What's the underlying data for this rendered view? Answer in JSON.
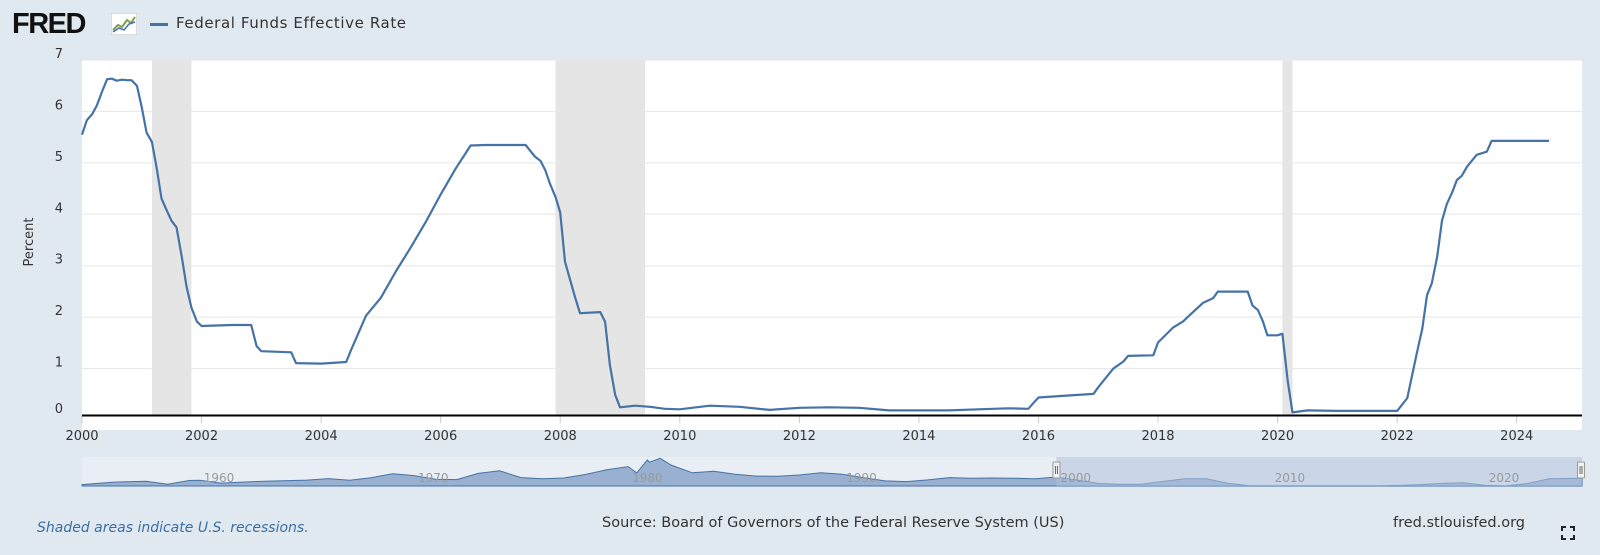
{
  "header": {
    "logo_text": "FRED",
    "logo_icon": "fred-chart-icon",
    "legend_label": "Federal Funds Effective Rate"
  },
  "colors": {
    "series": "#4572a7",
    "recession": "#e5e5e5",
    "background": "#e1e9f0",
    "plot": "#ffffff",
    "navigator_fill": "#7f9bc6",
    "navigator_selected": "#b1c3df"
  },
  "footer": {
    "recession_note": "Shaded areas indicate U.S. recessions.",
    "source": "Source: Board of Governors of the Federal Reserve System (US)",
    "site": "fred.stlouisfed.org",
    "fullscreen_icon": "fullscreen-icon"
  },
  "chart_data": {
    "type": "line",
    "title": "",
    "xlabel": "",
    "ylabel": "Percent",
    "xlim": [
      2000.0,
      2024.54
    ],
    "ylim": [
      0,
      7
    ],
    "y_ticks": [
      0,
      1,
      2,
      3,
      4,
      5,
      6,
      7
    ],
    "x_ticks": [
      2000,
      2002,
      2004,
      2006,
      2008,
      2010,
      2012,
      2014,
      2016,
      2018,
      2020,
      2022,
      2024
    ],
    "grid": true,
    "legend_position": "top-left",
    "recessions": [
      [
        2001.17,
        2001.83
      ],
      [
        2007.92,
        2009.42
      ],
      [
        2020.08,
        2020.25
      ]
    ],
    "series": [
      {
        "name": "Federal Funds Effective Rate",
        "x": [
          2000.0,
          2000.08,
          2000.17,
          2000.25,
          2000.33,
          2000.42,
          2000.5,
          2000.58,
          2000.67,
          2000.75,
          2000.83,
          2000.92,
          2001.0,
          2001.08,
          2001.17,
          2001.25,
          2001.33,
          2001.42,
          2001.5,
          2001.58,
          2001.67,
          2001.75,
          2001.83,
          2001.92,
          2002.0,
          2002.5,
          2002.83,
          2002.92,
          2003.0,
          2003.5,
          2003.58,
          2004.0,
          2004.42,
          2004.5,
          2004.75,
          2005.0,
          2005.25,
          2005.5,
          2005.75,
          2006.0,
          2006.25,
          2006.5,
          2006.75,
          2007.0,
          2007.42,
          2007.58,
          2007.67,
          2007.75,
          2007.83,
          2007.92,
          2008.0,
          2008.08,
          2008.17,
          2008.25,
          2008.33,
          2008.67,
          2008.75,
          2008.83,
          2008.92,
          2009.0,
          2009.25,
          2009.5,
          2009.75,
          2010.0,
          2010.5,
          2011.0,
          2011.5,
          2012.0,
          2012.5,
          2013.0,
          2013.5,
          2014.0,
          2014.5,
          2015.0,
          2015.5,
          2015.83,
          2015.92,
          2016.0,
          2016.5,
          2016.92,
          2017.0,
          2017.25,
          2017.42,
          2017.5,
          2017.92,
          2018.0,
          2018.25,
          2018.42,
          2018.5,
          2018.75,
          2018.92,
          2019.0,
          2019.5,
          2019.58,
          2019.67,
          2019.75,
          2019.83,
          2019.92,
          2020.0,
          2020.08,
          2020.17,
          2020.25,
          2020.5,
          2021.0,
          2021.5,
          2022.0,
          2022.17,
          2022.25,
          2022.33,
          2022.42,
          2022.5,
          2022.58,
          2022.67,
          2022.75,
          2022.83,
          2022.92,
          2023.0,
          2023.08,
          2023.17,
          2023.33,
          2023.5,
          2023.58,
          2023.75,
          2024.0,
          2024.25,
          2024.54
        ],
        "y": [
          5.45,
          5.73,
          5.85,
          6.02,
          6.27,
          6.53,
          6.54,
          6.5,
          6.52,
          6.51,
          6.51,
          6.4,
          5.98,
          5.49,
          5.31,
          4.8,
          4.21,
          3.97,
          3.77,
          3.65,
          3.07,
          2.49,
          2.09,
          1.82,
          1.73,
          1.75,
          1.75,
          1.34,
          1.24,
          1.22,
          1.01,
          1.0,
          1.03,
          1.26,
          1.93,
          2.28,
          2.79,
          3.26,
          3.75,
          4.29,
          4.79,
          5.24,
          5.25,
          5.25,
          5.25,
          5.02,
          4.94,
          4.76,
          4.49,
          4.24,
          3.94,
          2.98,
          2.61,
          2.28,
          1.98,
          2.0,
          1.81,
          0.97,
          0.39,
          0.15,
          0.18,
          0.16,
          0.12,
          0.11,
          0.18,
          0.16,
          0.1,
          0.14,
          0.15,
          0.14,
          0.09,
          0.09,
          0.09,
          0.11,
          0.13,
          0.12,
          0.24,
          0.34,
          0.38,
          0.41,
          0.54,
          0.9,
          1.04,
          1.15,
          1.16,
          1.41,
          1.7,
          1.82,
          1.91,
          2.18,
          2.27,
          2.4,
          2.4,
          2.13,
          2.04,
          1.83,
          1.55,
          1.55,
          1.55,
          1.58,
          0.65,
          0.05,
          0.09,
          0.08,
          0.08,
          0.08,
          0.33,
          0.77,
          1.21,
          1.68,
          2.33,
          2.56,
          3.08,
          3.78,
          4.1,
          4.33,
          4.57,
          4.65,
          4.83,
          5.06,
          5.12,
          5.33,
          5.33,
          5.33,
          5.33,
          5.33
        ]
      }
    ],
    "navigator": {
      "tick_labels": [
        "1960",
        "1970",
        "1980",
        "1990",
        "2000",
        "2010",
        "2020"
      ],
      "tick_years": [
        1960,
        1970,
        1980,
        1990,
        2000,
        2010,
        2020
      ],
      "range": [
        1954.5,
        2024.54
      ],
      "selected": [
        2000.0,
        2024.54
      ],
      "points": [
        [
          1954.5,
          1.0
        ],
        [
          1956,
          2.7
        ],
        [
          1957.5,
          3.3
        ],
        [
          1958.5,
          1.2
        ],
        [
          1959.5,
          3.8
        ],
        [
          1960,
          3.9
        ],
        [
          1961,
          2.0
        ],
        [
          1962,
          2.7
        ],
        [
          1963,
          3.3
        ],
        [
          1965,
          4.1
        ],
        [
          1966,
          5.1
        ],
        [
          1967,
          4.0
        ],
        [
          1968,
          5.7
        ],
        [
          1969,
          8.5
        ],
        [
          1970,
          7.2
        ],
        [
          1971,
          4.7
        ],
        [
          1972,
          4.4
        ],
        [
          1973,
          8.7
        ],
        [
          1974,
          10.5
        ],
        [
          1975,
          5.8
        ],
        [
          1976,
          5.0
        ],
        [
          1977,
          5.5
        ],
        [
          1978,
          7.9
        ],
        [
          1979,
          11.2
        ],
        [
          1980,
          13.4
        ],
        [
          1980.4,
          9.0
        ],
        [
          1980.9,
          18.0
        ],
        [
          1981,
          16.4
        ],
        [
          1981.5,
          19.1
        ],
        [
          1982,
          14.5
        ],
        [
          1983,
          9.1
        ],
        [
          1984,
          10.2
        ],
        [
          1985,
          8.1
        ],
        [
          1986,
          6.8
        ],
        [
          1987,
          6.7
        ],
        [
          1988,
          7.6
        ],
        [
          1989,
          9.2
        ],
        [
          1990,
          8.1
        ],
        [
          1991,
          5.7
        ],
        [
          1992,
          3.5
        ],
        [
          1993,
          3.0
        ],
        [
          1994,
          4.2
        ],
        [
          1995,
          5.8
        ],
        [
          1996,
          5.3
        ],
        [
          1997,
          5.5
        ],
        [
          1998,
          5.4
        ],
        [
          1999,
          5.0
        ],
        [
          2000,
          6.2
        ],
        [
          2001,
          3.9
        ],
        [
          2002,
          1.7
        ],
        [
          2003,
          1.1
        ],
        [
          2004,
          1.3
        ],
        [
          2005,
          3.2
        ],
        [
          2006,
          5.0
        ],
        [
          2007,
          5.0
        ],
        [
          2008,
          1.9
        ],
        [
          2009,
          0.16
        ],
        [
          2012,
          0.14
        ],
        [
          2015,
          0.13
        ],
        [
          2016,
          0.4
        ],
        [
          2017,
          1.0
        ],
        [
          2018,
          1.8
        ],
        [
          2019,
          2.2
        ],
        [
          2020,
          0.4
        ],
        [
          2021,
          0.08
        ],
        [
          2022,
          1.7
        ],
        [
          2023,
          5.0
        ],
        [
          2024.54,
          5.33
        ]
      ]
    }
  }
}
